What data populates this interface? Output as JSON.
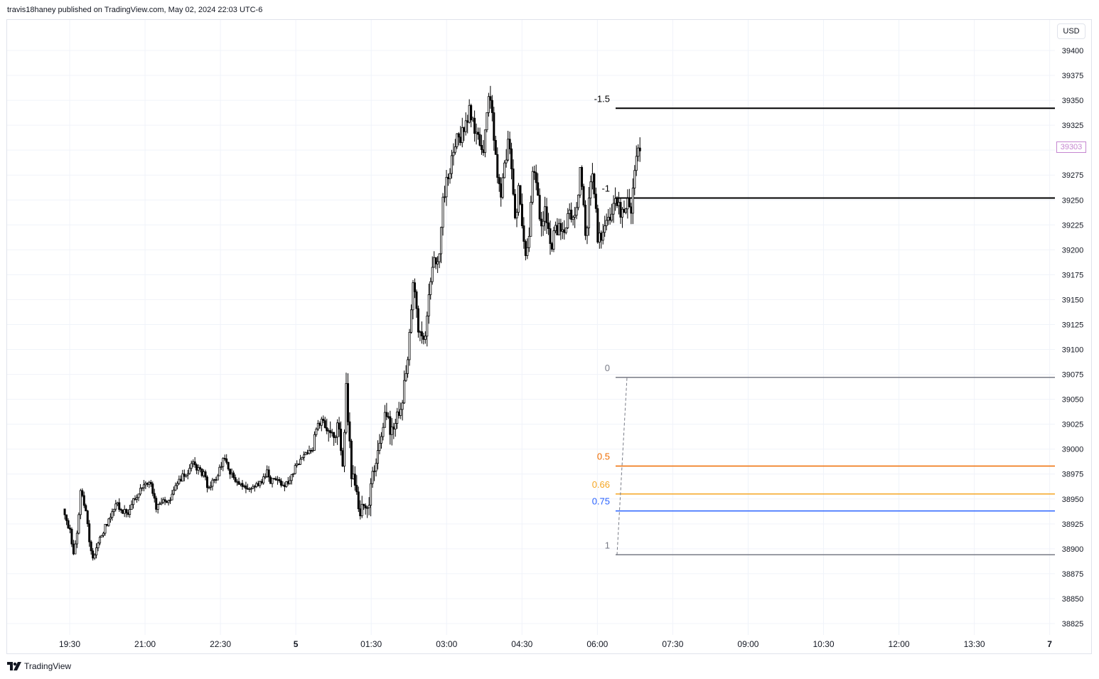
{
  "header": {
    "text": "travis18haney published on TradingView.com, May 02, 2024 22:03 UTC-6"
  },
  "footer": {
    "brand": "TradingView",
    "logo_icon": "tradingview-logo-icon"
  },
  "axis": {
    "currency": "USD",
    "last_price": "39303"
  },
  "colors": {
    "candle_body_up": "#ffffff",
    "candle_body_down": "#000000",
    "candle_stroke": "#000000",
    "grid": "#f0f3fa",
    "fib_black": "#000000",
    "fib_gray": "#787b86",
    "fib_orange_dark": "#ef6c00",
    "fib_orange": "#f5a623",
    "fib_blue": "#2962ff",
    "last_price": "#c586d0"
  },
  "chart_data": {
    "type": "candlestick",
    "title": "",
    "ylim": [
      38800,
      39425
    ],
    "y_ticks": [
      38825,
      38850,
      38875,
      38900,
      38925,
      38950,
      38975,
      39000,
      39025,
      39050,
      39075,
      39100,
      39125,
      39150,
      39175,
      39200,
      39225,
      39250,
      39275,
      39300,
      39325,
      39350,
      39375,
      39400
    ],
    "x_ticks": [
      "19:30",
      "21:00",
      "22:30",
      "5",
      "01:30",
      "03:00",
      "04:30",
      "06:00",
      "07:30",
      "09:00",
      "10:30",
      "12:00",
      "13:30",
      "7"
    ],
    "fib_levels": [
      {
        "label": "-1.5",
        "price": 39342,
        "color": "#000000"
      },
      {
        "label": "-1",
        "price": 39252,
        "color": "#000000"
      },
      {
        "label": "0",
        "price": 39072,
        "color": "#787b86"
      },
      {
        "label": "0.5",
        "price": 38983,
        "color": "#ef6c00"
      },
      {
        "label": "0.66",
        "price": 38955,
        "color": "#f5a623"
      },
      {
        "label": "0.75",
        "price": 38938,
        "color": "#2962ff"
      },
      {
        "label": "1",
        "price": 38894,
        "color": "#787b86"
      }
    ],
    "anchors": [
      {
        "price": 38940,
        "minute": -8.0
      },
      {
        "price": 38915,
        "minute": 1.0
      },
      {
        "price": 38892,
        "minute": 4.5
      },
      {
        "price": 38920,
        "minute": 10.0
      },
      {
        "price": 38960,
        "minute": 13.0
      },
      {
        "price": 38938,
        "minute": 20.0
      },
      {
        "price": 38900,
        "minute": 24.0
      },
      {
        "price": 38892,
        "minute": 28.0
      },
      {
        "price": 38905,
        "minute": 34.0
      },
      {
        "price": 38925,
        "minute": 44.0
      },
      {
        "price": 38945,
        "minute": 56.0
      },
      {
        "price": 38935,
        "minute": 68.0
      },
      {
        "price": 38960,
        "minute": 84.0
      },
      {
        "price": 38965,
        "minute": 96.0
      },
      {
        "price": 38940,
        "minute": 104.0
      },
      {
        "price": 38945,
        "minute": 110.0
      },
      {
        "price": 38950,
        "minute": 120.0
      },
      {
        "price": 38972,
        "minute": 134.0
      },
      {
        "price": 38985,
        "minute": 148.0
      },
      {
        "price": 38975,
        "minute": 160.0
      },
      {
        "price": 38960,
        "minute": 166.0
      },
      {
        "price": 38973,
        "minute": 176.0
      },
      {
        "price": 38990,
        "minute": 184.0
      },
      {
        "price": 38980,
        "minute": 190.0
      },
      {
        "price": 38970,
        "minute": 196.0
      },
      {
        "price": 38968,
        "minute": 202.0
      },
      {
        "price": 38962,
        "minute": 214.0
      },
      {
        "price": 38968,
        "minute": 228.0
      },
      {
        "price": 38978,
        "minute": 236.0
      },
      {
        "price": 38968,
        "minute": 240.0
      },
      {
        "price": 38972,
        "minute": 248.0
      },
      {
        "price": 38960,
        "minute": 256.0
      },
      {
        "price": 38972,
        "minute": 264.0
      },
      {
        "price": 38985,
        "minute": 270.0
      },
      {
        "price": 38993,
        "minute": 280.0
      },
      {
        "price": 39000,
        "minute": 290.0
      },
      {
        "price": 39030,
        "minute": 296.0
      },
      {
        "price": 39020,
        "minute": 304.0
      },
      {
        "price": 39020,
        "minute": 310.0
      },
      {
        "price": 39005,
        "minute": 316.0
      },
      {
        "price": 39025,
        "minute": 320.0
      },
      {
        "price": 38980,
        "minute": 326.0
      },
      {
        "price": 39060,
        "minute": 330.0
      },
      {
        "price": 38980,
        "minute": 336.0
      },
      {
        "price": 38960,
        "minute": 340.0
      },
      {
        "price": 38940,
        "minute": 346.0
      },
      {
        "price": 38945,
        "minute": 356.0
      },
      {
        "price": 38990,
        "minute": 366.0
      },
      {
        "price": 39035,
        "minute": 376.0
      },
      {
        "price": 39015,
        "minute": 386.0
      },
      {
        "price": 39045,
        "minute": 396.0
      },
      {
        "price": 39100,
        "minute": 404.0
      },
      {
        "price": 39165,
        "minute": 410.0
      },
      {
        "price": 39125,
        "minute": 416.0
      },
      {
        "price": 39105,
        "minute": 422.0
      },
      {
        "price": 39140,
        "minute": 428.0
      },
      {
        "price": 39195,
        "minute": 434.0
      },
      {
        "price": 39180,
        "minute": 440.0
      },
      {
        "price": 39255,
        "minute": 446.0
      },
      {
        "price": 39272,
        "minute": 452.0
      },
      {
        "price": 39305,
        "minute": 460.0
      },
      {
        "price": 39320,
        "minute": 470.0
      },
      {
        "price": 39340,
        "minute": 478.0
      },
      {
        "price": 39310,
        "minute": 486.0
      },
      {
        "price": 39300,
        "minute": 494.0
      },
      {
        "price": 39360,
        "minute": 502.0
      },
      {
        "price": 39300,
        "minute": 508.0
      },
      {
        "price": 39250,
        "minute": 514.0
      },
      {
        "price": 39300,
        "minute": 522.0
      },
      {
        "price": 39310,
        "minute": 526.0
      },
      {
        "price": 39225,
        "minute": 532.0
      },
      {
        "price": 39260,
        "minute": 536.0
      },
      {
        "price": 39200,
        "minute": 544.0
      },
      {
        "price": 39200,
        "minute": 548.0
      },
      {
        "price": 39285,
        "minute": 552.0
      },
      {
        "price": 39255,
        "minute": 558.0
      },
      {
        "price": 39220,
        "minute": 564.0
      },
      {
        "price": 39240,
        "minute": 568.0
      },
      {
        "price": 39200,
        "minute": 576.0
      },
      {
        "price": 39225,
        "minute": 580.0
      },
      {
        "price": 39215,
        "minute": 590.0
      },
      {
        "price": 39240,
        "minute": 596.0
      },
      {
        "price": 39228,
        "minute": 604.0
      },
      {
        "price": 39285,
        "minute": 610.0
      },
      {
        "price": 39215,
        "minute": 616.0
      },
      {
        "price": 39280,
        "minute": 624.0
      },
      {
        "price": 39215,
        "minute": 630.0
      },
      {
        "price": 39210,
        "minute": 634.0
      },
      {
        "price": 39230,
        "minute": 642.0
      },
      {
        "price": 39238,
        "minute": 648.0
      },
      {
        "price": 39248,
        "minute": 654.0
      },
      {
        "price": 39235,
        "minute": 660.0
      },
      {
        "price": 39245,
        "minute": 666.0
      },
      {
        "price": 39240,
        "minute": 670.0
      },
      {
        "price": 39290,
        "minute": 676.0
      },
      {
        "price": 39303,
        "minute": 681.0
      }
    ]
  }
}
